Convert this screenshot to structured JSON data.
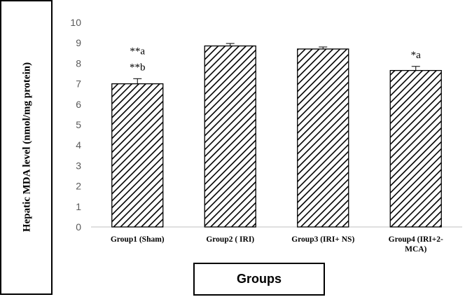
{
  "chart_data": {
    "type": "bar",
    "ylabel": "Hepatic MDA level (nmol/mg protein)",
    "xlabel": "Groups",
    "categories": [
      [
        "Group1  (Sham)"
      ],
      [
        "Group2  ( IRI)"
      ],
      [
        "Group3  (IRI+  NS)"
      ],
      [
        "Group4  (IRI+2-",
        "MCA)"
      ]
    ],
    "values": [
      7.0,
      8.85,
      8.7,
      7.65
    ],
    "errors": [
      0.25,
      0.12,
      0.1,
      0.2
    ],
    "annotations": [
      [
        "**a",
        "**b"
      ],
      [],
      [],
      [
        "*a"
      ]
    ],
    "ylim": [
      0,
      10
    ],
    "yticks": [
      "0",
      "1",
      "2",
      "3",
      "4",
      "5",
      "6",
      "7",
      "8",
      "9",
      "10"
    ],
    "grid": false,
    "bar_fill": "diagonal-hatch",
    "colors": {
      "bar_fill": "#ffffff",
      "hatch": "#000000",
      "bar_edge": "#000000",
      "axis": "#bfbfbf",
      "tick_text": "#595959"
    }
  }
}
